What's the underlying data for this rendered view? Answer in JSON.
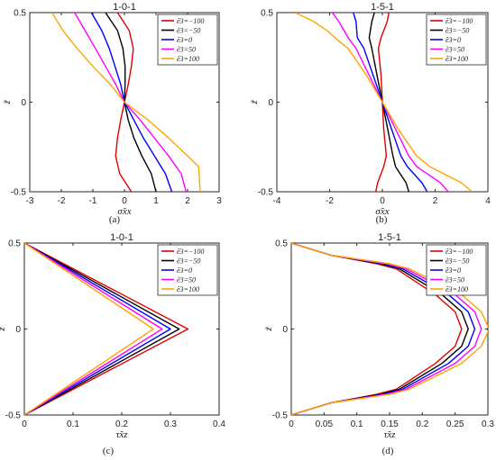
{
  "colors": {
    "series": [
      "#e00000",
      "#000000",
      "#0000ff",
      "#ff00ff",
      "#ffa500"
    ]
  },
  "legend": [
    "ẽ3=−100",
    "ẽ3=−50",
    "ẽ3=0",
    "ẽ3=50",
    "ẽ3=100"
  ],
  "chart_data": [
    {
      "type": "line",
      "title": "1-0-1",
      "panel_label": "(a)",
      "xlabel": "σ̃xx",
      "ylabel": "z̃",
      "xlim": [
        -3,
        3
      ],
      "ylim": [
        -0.5,
        0.5
      ],
      "xticks": [
        "-3",
        "-2",
        "-1",
        "0",
        "1",
        "2",
        "3"
      ],
      "yticks": [
        "-0.5",
        "0",
        "0.5"
      ],
      "legend_position": "top-right",
      "series": [
        {
          "name": "ẽ3=−100",
          "points": [
            [
              -0.22,
              0.5
            ],
            [
              0.15,
              0.4
            ],
            [
              0.28,
              0.3
            ],
            [
              0.22,
              0.2
            ],
            [
              0.12,
              0.1
            ],
            [
              0,
              0
            ],
            [
              -0.12,
              -0.1
            ],
            [
              -0.22,
              -0.2
            ],
            [
              -0.28,
              -0.3
            ],
            [
              -0.15,
              -0.4
            ],
            [
              0.22,
              -0.5
            ]
          ]
        },
        {
          "name": "ẽ3=−50",
          "points": [
            [
              -0.6,
              0.5
            ],
            [
              -0.22,
              0.4
            ],
            [
              -0.05,
              0.3
            ],
            [
              0.02,
              0.2
            ],
            [
              0.02,
              0.1
            ],
            [
              0,
              0
            ],
            [
              0.12,
              -0.1
            ],
            [
              0.3,
              -0.2
            ],
            [
              0.55,
              -0.3
            ],
            [
              0.85,
              -0.4
            ],
            [
              1.0,
              -0.5
            ]
          ]
        },
        {
          "name": "ẽ3=0",
          "points": [
            [
              -1.05,
              0.5
            ],
            [
              -0.72,
              0.4
            ],
            [
              -0.48,
              0.3
            ],
            [
              -0.3,
              0.2
            ],
            [
              -0.12,
              0.1
            ],
            [
              0,
              0
            ],
            [
              0.3,
              -0.1
            ],
            [
              0.6,
              -0.2
            ],
            [
              0.95,
              -0.3
            ],
            [
              1.3,
              -0.4
            ],
            [
              1.5,
              -0.5
            ]
          ]
        },
        {
          "name": "ẽ3=50",
          "points": [
            [
              -1.58,
              0.5
            ],
            [
              -1.25,
              0.4
            ],
            [
              -0.92,
              0.3
            ],
            [
              -0.6,
              0.2
            ],
            [
              -0.28,
              0.1
            ],
            [
              0,
              0
            ],
            [
              0.5,
              -0.1
            ],
            [
              0.95,
              -0.2
            ],
            [
              1.4,
              -0.3
            ],
            [
              1.8,
              -0.4
            ],
            [
              1.95,
              -0.5
            ]
          ]
        },
        {
          "name": "ẽ3=100",
          "points": [
            [
              -2.3,
              0.5
            ],
            [
              -1.95,
              0.4
            ],
            [
              -1.5,
              0.3
            ],
            [
              -1.0,
              0.2
            ],
            [
              -0.45,
              0.1
            ],
            [
              0,
              0
            ],
            [
              0.75,
              -0.1
            ],
            [
              1.4,
              -0.2
            ],
            [
              2.0,
              -0.3
            ],
            [
              2.35,
              -0.36
            ],
            [
              2.4,
              -0.5
            ]
          ]
        }
      ]
    },
    {
      "type": "line",
      "title": "1-5-1",
      "panel_label": "(b)",
      "xlabel": "σ̃xx",
      "ylabel": "z̃",
      "xlim": [
        -4,
        4
      ],
      "ylim": [
        -0.5,
        0.5
      ],
      "xticks": [
        "-4",
        "-2",
        "0",
        "2",
        "4"
      ],
      "yticks": [
        "-0.5",
        "0",
        "0.5"
      ],
      "legend_position": "top-right",
      "series": [
        {
          "name": "ẽ3=−100",
          "points": [
            [
              0.25,
              0.5
            ],
            [
              0.18,
              0.45
            ],
            [
              -0.05,
              0.36
            ],
            [
              -0.15,
              0.3
            ],
            [
              -0.05,
              0.15
            ],
            [
              0,
              0
            ],
            [
              0.05,
              -0.15
            ],
            [
              0.15,
              -0.3
            ],
            [
              0.05,
              -0.36
            ],
            [
              -0.18,
              -0.45
            ],
            [
              -0.25,
              -0.5
            ]
          ]
        },
        {
          "name": "ẽ3=−50",
          "points": [
            [
              -0.3,
              0.5
            ],
            [
              -0.4,
              0.45
            ],
            [
              -0.5,
              0.36
            ],
            [
              -0.4,
              0.3
            ],
            [
              -0.2,
              0.15
            ],
            [
              0,
              0
            ],
            [
              0.2,
              -0.15
            ],
            [
              0.4,
              -0.3
            ],
            [
              0.5,
              -0.36
            ],
            [
              0.9,
              -0.45
            ],
            [
              1.0,
              -0.5
            ]
          ]
        },
        {
          "name": "ẽ3=0",
          "points": [
            [
              -1.1,
              0.5
            ],
            [
              -1.0,
              0.45
            ],
            [
              -0.95,
              0.36
            ],
            [
              -0.7,
              0.3
            ],
            [
              -0.35,
              0.15
            ],
            [
              0,
              0
            ],
            [
              0.35,
              -0.15
            ],
            [
              0.7,
              -0.3
            ],
            [
              0.95,
              -0.36
            ],
            [
              1.5,
              -0.45
            ],
            [
              1.7,
              -0.5
            ]
          ]
        },
        {
          "name": "ẽ3=50",
          "points": [
            [
              -1.9,
              0.5
            ],
            [
              -1.65,
              0.45
            ],
            [
              -1.3,
              0.36
            ],
            [
              -1.0,
              0.3
            ],
            [
              -0.5,
              0.15
            ],
            [
              0,
              0
            ],
            [
              0.5,
              -0.15
            ],
            [
              1.0,
              -0.3
            ],
            [
              1.3,
              -0.36
            ],
            [
              2.2,
              -0.45
            ],
            [
              2.5,
              -0.5
            ]
          ]
        },
        {
          "name": "ẽ3=100",
          "points": [
            [
              -3.3,
              0.5
            ],
            [
              -2.6,
              0.45
            ],
            [
              -2.1,
              0.4
            ],
            [
              -1.8,
              0.36
            ],
            [
              -1.3,
              0.3
            ],
            [
              -0.6,
              0.15
            ],
            [
              0,
              0
            ],
            [
              0.6,
              -0.15
            ],
            [
              1.3,
              -0.3
            ],
            [
              1.8,
              -0.36
            ],
            [
              3.0,
              -0.45
            ],
            [
              3.4,
              -0.5
            ]
          ]
        }
      ]
    },
    {
      "type": "line",
      "title": "1-0-1",
      "panel_label": "(c)",
      "xlabel": "τ̃xz",
      "ylabel": "z̃",
      "xlim": [
        0,
        0.4
      ],
      "ylim": [
        -0.5,
        0.5
      ],
      "xticks": [
        "0",
        "0.1",
        "0.2",
        "0.3",
        "0.4"
      ],
      "yticks": [
        "-0.5",
        "0",
        "0.5"
      ],
      "legend_position": "top-right",
      "series": [
        {
          "name": "ẽ3=−100",
          "points": [
            [
              0,
              0.5
            ],
            [
              0.336,
              0
            ],
            [
              0,
              -0.5
            ]
          ]
        },
        {
          "name": "ẽ3=−50",
          "points": [
            [
              0,
              0.5
            ],
            [
              0.318,
              0
            ],
            [
              0,
              -0.5
            ]
          ]
        },
        {
          "name": "ẽ3=0",
          "points": [
            [
              0,
              0.5
            ],
            [
              0.3,
              0
            ],
            [
              0,
              -0.5
            ]
          ]
        },
        {
          "name": "ẽ3=50",
          "points": [
            [
              0,
              0.5
            ],
            [
              0.283,
              0
            ],
            [
              0,
              -0.5
            ]
          ]
        },
        {
          "name": "ẽ3=100",
          "points": [
            [
              0,
              0.5
            ],
            [
              0.265,
              0
            ],
            [
              0,
              -0.5
            ]
          ]
        }
      ]
    },
    {
      "type": "line",
      "title": "1-5-1",
      "panel_label": "(d)",
      "xlabel": "τ̃xz",
      "ylabel": "z̃",
      "xlim": [
        0,
        0.3
      ],
      "ylim": [
        -0.5,
        0.5
      ],
      "xticks": [
        "0",
        "0.05",
        "0.1",
        "0.15",
        "0.2",
        "0.25",
        "0.3"
      ],
      "yticks": [
        "-0.5",
        "0",
        "0.5"
      ],
      "legend_position": "top-right",
      "series": [
        {
          "name": "ẽ3=−100",
          "points": [
            [
              0,
              0.5
            ],
            [
              0.06,
              0.43
            ],
            [
              0.13,
              0.38
            ],
            [
              0.16,
              0.35
            ],
            [
              0.22,
              0.2
            ],
            [
              0.25,
              0.1
            ],
            [
              0.26,
              0
            ],
            [
              0.25,
              -0.1
            ],
            [
              0.22,
              -0.2
            ],
            [
              0.16,
              -0.35
            ],
            [
              0.13,
              -0.38
            ],
            [
              0.06,
              -0.43
            ],
            [
              0,
              -0.5
            ]
          ]
        },
        {
          "name": "ẽ3=−50",
          "points": [
            [
              0,
              0.5
            ],
            [
              0.06,
              0.43
            ],
            [
              0.135,
              0.38
            ],
            [
              0.165,
              0.35
            ],
            [
              0.23,
              0.2
            ],
            [
              0.26,
              0.1
            ],
            [
              0.27,
              0
            ],
            [
              0.26,
              -0.1
            ],
            [
              0.23,
              -0.2
            ],
            [
              0.165,
              -0.35
            ],
            [
              0.135,
              -0.38
            ],
            [
              0.06,
              -0.43
            ],
            [
              0,
              -0.5
            ]
          ]
        },
        {
          "name": "ẽ3=0",
          "points": [
            [
              0,
              0.5
            ],
            [
              0.06,
              0.43
            ],
            [
              0.14,
              0.38
            ],
            [
              0.17,
              0.35
            ],
            [
              0.24,
              0.2
            ],
            [
              0.27,
              0.1
            ],
            [
              0.28,
              0
            ],
            [
              0.27,
              -0.1
            ],
            [
              0.24,
              -0.2
            ],
            [
              0.17,
              -0.35
            ],
            [
              0.14,
              -0.38
            ],
            [
              0.06,
              -0.43
            ],
            [
              0,
              -0.5
            ]
          ]
        },
        {
          "name": "ẽ3=50",
          "points": [
            [
              0,
              0.5
            ],
            [
              0.06,
              0.43
            ],
            [
              0.145,
              0.38
            ],
            [
              0.175,
              0.35
            ],
            [
              0.25,
              0.2
            ],
            [
              0.28,
              0.1
            ],
            [
              0.29,
              0
            ],
            [
              0.28,
              -0.1
            ],
            [
              0.25,
              -0.2
            ],
            [
              0.175,
              -0.35
            ],
            [
              0.145,
              -0.38
            ],
            [
              0.06,
              -0.43
            ],
            [
              0,
              -0.5
            ]
          ]
        },
        {
          "name": "ẽ3=100",
          "points": [
            [
              0,
              0.5
            ],
            [
              0.06,
              0.43
            ],
            [
              0.15,
              0.38
            ],
            [
              0.18,
              0.35
            ],
            [
              0.26,
              0.2
            ],
            [
              0.29,
              0.1
            ],
            [
              0.302,
              0
            ],
            [
              0.29,
              -0.1
            ],
            [
              0.26,
              -0.2
            ],
            [
              0.18,
              -0.35
            ],
            [
              0.15,
              -0.38
            ],
            [
              0.06,
              -0.43
            ],
            [
              0,
              -0.5
            ]
          ]
        }
      ]
    }
  ]
}
